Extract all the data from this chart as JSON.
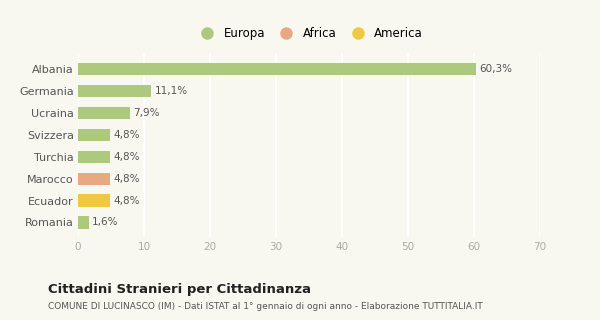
{
  "categories": [
    "Albania",
    "Germania",
    "Ucraina",
    "Svizzera",
    "Turchia",
    "Marocco",
    "Ecuador",
    "Romania"
  ],
  "values": [
    60.3,
    11.1,
    7.9,
    4.8,
    4.8,
    4.8,
    4.8,
    1.6
  ],
  "labels": [
    "60,3%",
    "11,1%",
    "7,9%",
    "4,8%",
    "4,8%",
    "4,8%",
    "4,8%",
    "1,6%"
  ],
  "colors": [
    "#adc97e",
    "#adc97e",
    "#adc97e",
    "#adc97e",
    "#adc97e",
    "#e8a882",
    "#f0c842",
    "#adc97e"
  ],
  "legend": [
    {
      "label": "Europa",
      "color": "#adc97e"
    },
    {
      "label": "Africa",
      "color": "#e8a882"
    },
    {
      "label": "America",
      "color": "#f0c842"
    }
  ],
  "xlim": [
    0,
    70
  ],
  "xticks": [
    0,
    10,
    20,
    30,
    40,
    50,
    60,
    70
  ],
  "title": "Cittadini Stranieri per Cittadinanza",
  "subtitle": "COMUNE DI LUCINASCO (IM) - Dati ISTAT al 1° gennaio di ogni anno - Elaborazione TUTTITALIA.IT",
  "bg_color": "#f8f8f0",
  "grid_color": "#ffffff",
  "bar_height": 0.55
}
